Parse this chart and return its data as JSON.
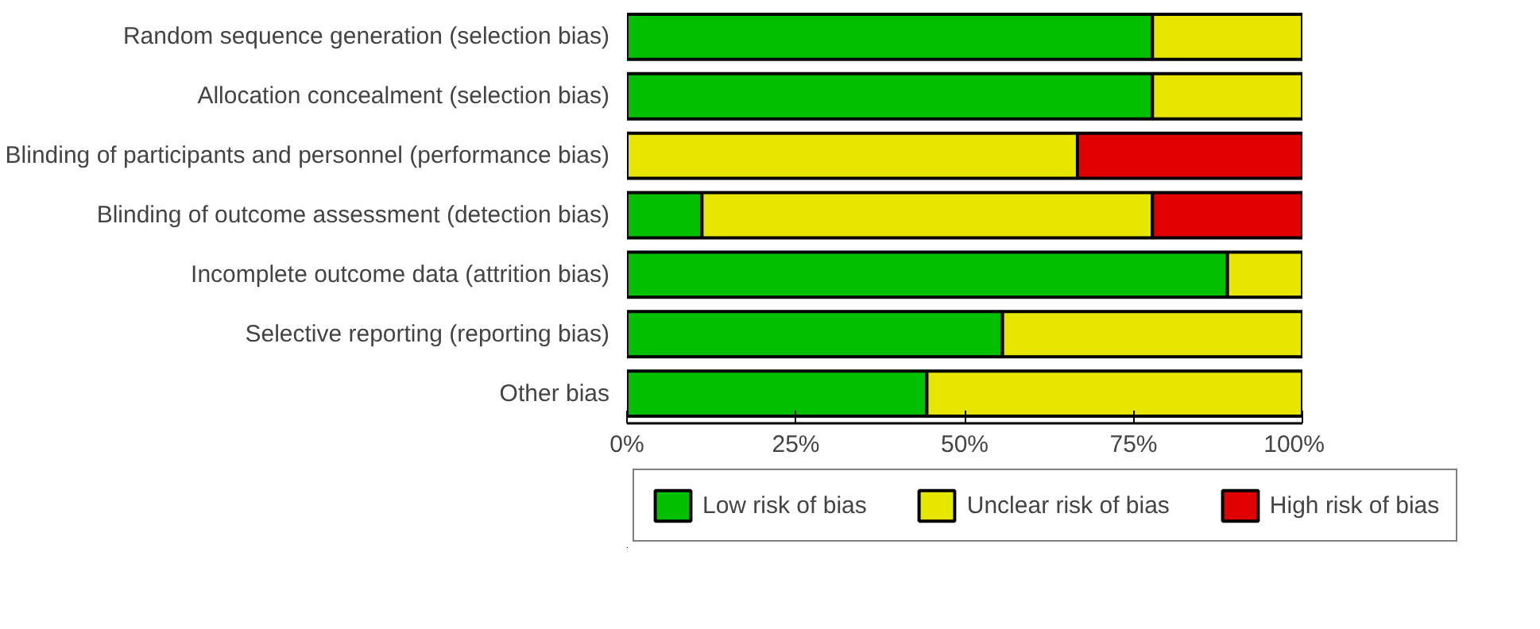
{
  "chart_data": {
    "type": "bar",
    "orientation": "horizontal",
    "stacked": true,
    "categories": [
      "Random sequence generation (selection bias)",
      "Allocation concealment (selection bias)",
      "Blinding of participants and personnel (performance bias)",
      "Blinding of outcome assessment (detection bias)",
      "Incomplete outcome data (attrition bias)",
      "Selective reporting (reporting bias)",
      "Other bias"
    ],
    "series": [
      {
        "name": "Low risk of bias",
        "color": "#00c000",
        "values": [
          77.8,
          77.8,
          0,
          11.1,
          88.9,
          55.6,
          44.4
        ]
      },
      {
        "name": "Unclear risk of bias",
        "color": "#e6e600",
        "values": [
          22.2,
          22.2,
          66.7,
          66.7,
          11.1,
          44.4,
          55.6
        ]
      },
      {
        "name": "High risk of bias",
        "color": "#e00000",
        "values": [
          0,
          0,
          33.3,
          22.2,
          0,
          0,
          0
        ]
      }
    ],
    "xlim": [
      0,
      100
    ],
    "xticks": [
      {
        "value": 0,
        "label": "0%"
      },
      {
        "value": 25,
        "label": "25%"
      },
      {
        "value": 50,
        "label": "50%"
      },
      {
        "value": 75,
        "label": "75%"
      },
      {
        "value": 100,
        "label": "100%"
      }
    ],
    "grid": false,
    "legend": "bottom"
  }
}
